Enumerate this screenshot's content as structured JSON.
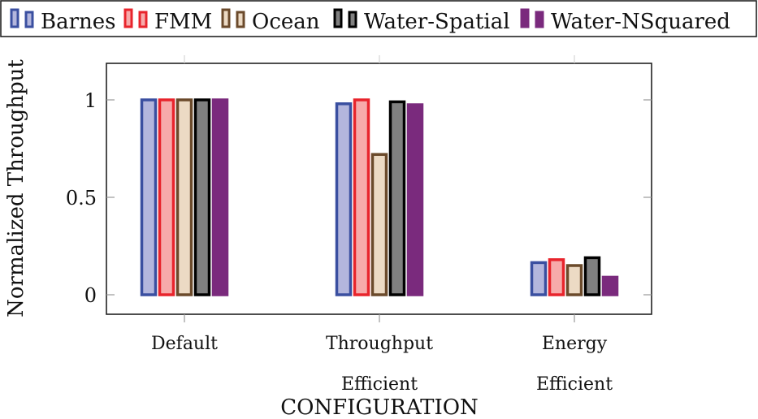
{
  "chart_data": {
    "type": "bar",
    "title": "",
    "xlabel": "CONFIGURATION",
    "ylabel": "Normalized Throughput",
    "ylim": [
      -0.1,
      1.17
    ],
    "yticks": [
      0,
      0.5,
      1
    ],
    "ytick_labels": [
      "0",
      "0.5",
      "1"
    ],
    "grid": false,
    "legend_position": "top",
    "categories": [
      [
        "Default"
      ],
      [
        "Throughput",
        "Efficient"
      ],
      [
        "Energy",
        "Efficient"
      ]
    ],
    "series": [
      {
        "name": "Barnes",
        "stroke": "#3a4fa0",
        "fill": "#b3b6dd",
        "values": [
          1.0,
          0.98,
          0.165
        ]
      },
      {
        "name": "FMM",
        "stroke": "#e8242c",
        "fill": "#f7aaaa",
        "values": [
          1.0,
          1.0,
          0.18
        ]
      },
      {
        "name": "Ocean",
        "stroke": "#6b4a2b",
        "fill": "#ecdac4",
        "values": [
          1.0,
          0.72,
          0.15
        ]
      },
      {
        "name": "Water-Spatial",
        "stroke": "#000000",
        "fill": "#808080",
        "values": [
          1.0,
          0.99,
          0.19
        ]
      },
      {
        "name": "Water-NSquared",
        "stroke": "#7a2a7d",
        "fill": "#7a2a7d",
        "values": [
          1.0,
          0.975,
          0.09
        ]
      }
    ]
  }
}
